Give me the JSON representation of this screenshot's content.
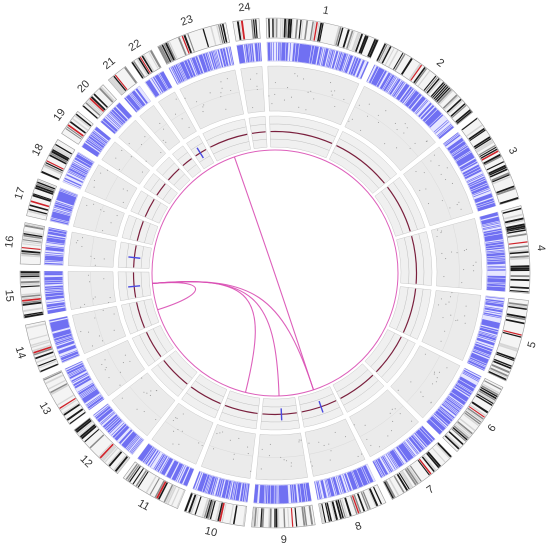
{
  "colors": {
    "ideogram_dark": "#1a1a1a",
    "ideogram_mid": "#8a8a8a",
    "ideogram_light": "#d6d6d6",
    "centromere": "#d0242b",
    "density": "#5a5af0",
    "density_bg": "#e6e6ff",
    "track_bg": "#ebebeb",
    "track_line": "#bfbfbf",
    "cnv_line": "#7a1f3d",
    "cnv_spike": "#4a4ae0",
    "link": "#d94fb4"
  },
  "chromosomes": [
    {
      "label": "1"
    },
    {
      "label": "2"
    },
    {
      "label": "3"
    },
    {
      "label": "4"
    },
    {
      "label": "5"
    },
    {
      "label": "6"
    },
    {
      "label": "7"
    },
    {
      "label": "8"
    },
    {
      "label": "9"
    },
    {
      "label": "10"
    },
    {
      "label": "11"
    },
    {
      "label": "12"
    },
    {
      "label": "13"
    },
    {
      "label": "14"
    },
    {
      "label": "15"
    },
    {
      "label": "16"
    },
    {
      "label": "17"
    },
    {
      "label": "18"
    },
    {
      "label": "19"
    },
    {
      "label": "20"
    },
    {
      "label": "21"
    },
    {
      "label": "22"
    },
    {
      "label": "23"
    },
    {
      "label": "24"
    }
  ],
  "chromosome_sizes": [
    249,
    243,
    198,
    191,
    181,
    171,
    159,
    145,
    138,
    134,
    135,
    133,
    114,
    107,
    102,
    90,
    83,
    80,
    59,
    64,
    47,
    51,
    156,
    57
  ],
  "links": [
    {
      "from": "23",
      "to": "8"
    },
    {
      "from": "15",
      "to": "9"
    },
    {
      "from": "15",
      "to": "8"
    },
    {
      "from": "15",
      "to": "10"
    },
    {
      "from": "14",
      "to": "15"
    }
  ],
  "spikes": [
    {
      "chr": "22"
    },
    {
      "chr": "16"
    },
    {
      "chr": "15"
    },
    {
      "chr": "9"
    },
    {
      "chr": "8"
    }
  ]
}
